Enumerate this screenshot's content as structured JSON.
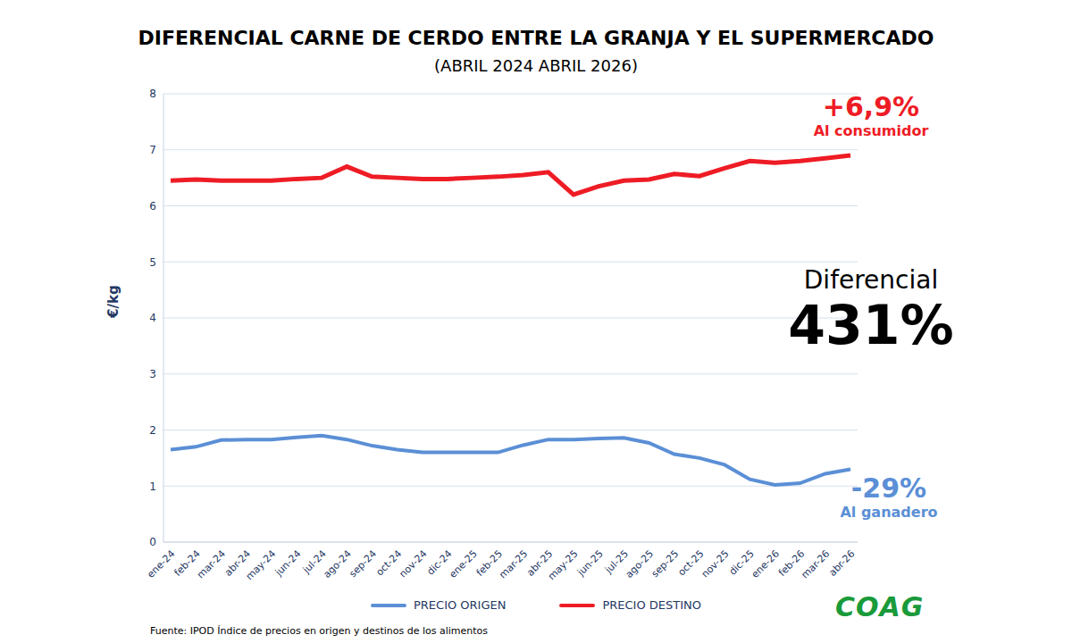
{
  "chart_data": {
    "type": "line",
    "title": "DIFERENCIAL CARNE DE CERDO ENTRE LA GRANJA Y EL SUPERMERCADO",
    "subtitle": "(ABRIL 2024 ABRIL 2026)",
    "ylabel": "€/kg",
    "categories": [
      "ene-24",
      "feb-24",
      "mar-24",
      "abr-24",
      "may-24",
      "jun-24",
      "jul-24",
      "ago-24",
      "sep-24",
      "oct-24",
      "nov-24",
      "dic-24",
      "ene-25",
      "feb-25",
      "mar-25",
      "abr-25",
      "may-25",
      "jun-25",
      "jul-25",
      "ago-25",
      "sep-25",
      "oct-25",
      "nov-25",
      "dic-25",
      "ene-26",
      "feb-26",
      "mar-26",
      "abr-26"
    ],
    "series": [
      {
        "name": "PRECIO ORIGEN",
        "color": "#5b8fd6",
        "values": [
          1.65,
          1.7,
          1.82,
          1.83,
          1.83,
          1.87,
          1.9,
          1.83,
          1.72,
          1.65,
          1.6,
          1.6,
          1.6,
          1.6,
          1.73,
          1.83,
          1.83,
          1.85,
          1.86,
          1.77,
          1.57,
          1.5,
          1.38,
          1.12,
          1.02,
          1.05,
          1.22,
          1.3
        ]
      },
      {
        "name": "PRECIO DESTINO",
        "color": "#ee1c25",
        "values": [
          6.45,
          6.47,
          6.45,
          6.45,
          6.45,
          6.48,
          6.5,
          6.7,
          6.52,
          6.5,
          6.48,
          6.48,
          6.5,
          6.52,
          6.55,
          6.6,
          6.2,
          6.35,
          6.45,
          6.47,
          6.57,
          6.53,
          6.67,
          6.8,
          6.77,
          6.8,
          6.85,
          6.9
        ]
      }
    ],
    "ylim": [
      0,
      8
    ],
    "yticks": [
      0,
      1,
      2,
      3,
      4,
      5,
      6,
      7,
      8
    ],
    "grid": true,
    "legend": "bottom",
    "annotations": [
      {
        "text": "+6,9%",
        "sub": "Al consumidor",
        "color": "#ee1c25"
      },
      {
        "text": "Diferencial",
        "sub": "431%",
        "color": "#000000"
      },
      {
        "text": "-29%",
        "sub": "Al ganadero",
        "color": "#5b8fd6"
      }
    ],
    "source": "Fuente: IPOD Índice de precios en origen y destinos de los alimentos",
    "logo": "COAG"
  }
}
